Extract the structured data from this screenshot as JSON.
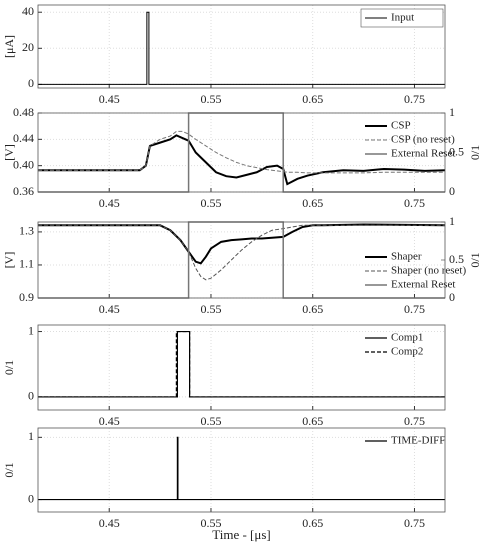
{
  "chart_data": [
    {
      "type": "line",
      "ylabel": "[μA]",
      "xlim": [
        0.38,
        0.78
      ],
      "xticks": [
        0.45,
        0.55,
        0.65,
        0.75
      ],
      "ylim": [
        -2,
        44
      ],
      "yticks": [
        0,
        20,
        40
      ],
      "grid": true,
      "legend": "top-right",
      "x": [
        0.38,
        0.487,
        0.487,
        0.489,
        0.489,
        0.78
      ],
      "series": [
        {
          "name": "Input",
          "color": "#000000",
          "width": 1,
          "values": [
            0,
            0,
            40,
            40,
            0,
            0
          ]
        }
      ]
    },
    {
      "type": "line",
      "ylabel": "[V]",
      "y2label": "0/1",
      "xlim": [
        0.38,
        0.78
      ],
      "xticks": [
        0.45,
        0.55,
        0.65,
        0.75
      ],
      "ylim": [
        0.36,
        0.48
      ],
      "yticks": [
        0.36,
        {
          "value": 0.4,
          "label": "0.40"
        },
        0.44,
        0.48
      ],
      "y2lim": [
        0,
        1
      ],
      "y2ticks": [
        0,
        0.5,
        1
      ],
      "grid": true,
      "legend": "top-right",
      "x": [
        0.38,
        0.48,
        0.486,
        0.49,
        0.5,
        0.51,
        0.516,
        0.522,
        0.528,
        0.528,
        0.535,
        0.545,
        0.555,
        0.565,
        0.575,
        0.585,
        0.595,
        0.605,
        0.615,
        0.621,
        0.621,
        0.625,
        0.635,
        0.645,
        0.66,
        0.68,
        0.7,
        0.72,
        0.74,
        0.76,
        0.78
      ],
      "series": [
        {
          "name": "CSP",
          "color": "#000000",
          "width": 2,
          "values": [
            0.393,
            0.393,
            0.4,
            0.43,
            0.435,
            0.44,
            0.446,
            0.442,
            0.438,
            0.438,
            0.42,
            0.405,
            0.39,
            0.384,
            0.382,
            0.386,
            0.39,
            0.398,
            0.4,
            0.395,
            0.395,
            0.372,
            0.38,
            0.385,
            0.39,
            0.393,
            0.392,
            0.395,
            0.394,
            0.392,
            0.393
          ]
        },
        {
          "name": "CSP (no reset)",
          "color": "#777777",
          "width": 1,
          "dashed": true,
          "values": [
            0.393,
            0.393,
            0.4,
            0.43,
            0.44,
            0.445,
            0.452,
            0.452,
            0.448,
            0.448,
            0.44,
            0.43,
            0.42,
            0.412,
            0.405,
            0.4,
            0.397,
            0.394,
            0.392,
            0.391,
            0.391,
            0.39,
            0.39,
            0.389,
            0.389,
            0.389,
            0.389,
            0.39,
            0.39,
            0.39,
            0.39
          ]
        },
        {
          "name": "External Reset",
          "color": "#777777",
          "width": 1.5,
          "axis": "y2",
          "values": [
            0,
            0,
            0,
            0,
            0,
            0,
            0,
            0,
            0,
            1,
            1,
            1,
            1,
            1,
            1,
            1,
            1,
            1,
            1,
            1,
            0,
            0,
            0,
            0,
            0,
            0,
            0,
            0,
            0,
            0,
            0
          ]
        }
      ]
    },
    {
      "type": "line",
      "ylabel": "[V]",
      "y2label": "0/1",
      "xlim": [
        0.38,
        0.78
      ],
      "xticks": [
        0.45,
        0.55,
        0.65,
        0.75
      ],
      "ylim": [
        0.9,
        1.36
      ],
      "yticks": [
        0.9,
        1.1,
        1.3
      ],
      "y2lim": [
        0,
        1
      ],
      "y2ticks": [
        0,
        0.5,
        1
      ],
      "grid": true,
      "legend": "bottom-right",
      "x": [
        0.38,
        0.5,
        0.51,
        0.52,
        0.528,
        0.528,
        0.535,
        0.54,
        0.545,
        0.55,
        0.56,
        0.57,
        0.58,
        0.59,
        0.6,
        0.61,
        0.621,
        0.621,
        0.63,
        0.64,
        0.65,
        0.66,
        0.7,
        0.78
      ],
      "series": [
        {
          "name": "Shaper",
          "color": "#000000",
          "width": 2,
          "values": [
            1.34,
            1.34,
            1.31,
            1.25,
            1.18,
            1.18,
            1.12,
            1.11,
            1.15,
            1.2,
            1.24,
            1.25,
            1.255,
            1.26,
            1.26,
            1.265,
            1.27,
            1.27,
            1.3,
            1.33,
            1.34,
            1.34,
            1.345,
            1.34
          ]
        },
        {
          "name": "Shaper (no reset)",
          "color": "#555555",
          "width": 1,
          "dashed": true,
          "values": [
            1.34,
            1.34,
            1.31,
            1.25,
            1.18,
            1.18,
            1.08,
            1.03,
            1.01,
            1.02,
            1.07,
            1.13,
            1.19,
            1.24,
            1.28,
            1.31,
            1.32,
            1.32,
            1.33,
            1.34,
            1.34,
            1.34,
            1.34,
            1.34
          ]
        },
        {
          "name": "External Reset",
          "color": "#777777",
          "width": 1.5,
          "axis": "y2",
          "values": [
            0,
            0,
            0,
            0,
            0,
            1,
            1,
            1,
            1,
            1,
            1,
            1,
            1,
            1,
            1,
            1,
            1,
            0,
            0,
            0,
            0,
            0,
            0,
            0
          ]
        }
      ]
    },
    {
      "type": "line",
      "ylabel": "0/1",
      "xlim": [
        0.38,
        0.78
      ],
      "xticks": [
        0.45,
        0.55,
        0.65,
        0.75
      ],
      "ylim": [
        -0.2,
        1.1
      ],
      "yticks": [
        0,
        1
      ],
      "grid": true,
      "legend": "top-right",
      "x": [
        0.38,
        0.516,
        0.516,
        0.517,
        0.517,
        0.529,
        0.529,
        0.78
      ],
      "series": [
        {
          "name": "Comp1",
          "color": "#000000",
          "width": 1.2,
          "values": [
            0,
            0,
            0,
            0,
            1,
            1,
            0,
            0
          ]
        },
        {
          "name": "Comp2",
          "color": "#000000",
          "width": 1.2,
          "dashed": true,
          "values": [
            0,
            0,
            1,
            1,
            1,
            1,
            0,
            0
          ]
        }
      ]
    },
    {
      "type": "line",
      "ylabel": "0/1",
      "xlabel": "Time - [μs]",
      "xlim": [
        0.38,
        0.78
      ],
      "xticks": [
        0.45,
        0.55,
        0.65,
        0.75
      ],
      "ylim": [
        -0.2,
        1.15
      ],
      "yticks": [
        0,
        1
      ],
      "grid": true,
      "legend": "top-right",
      "x": [
        0.38,
        0.517,
        0.517,
        0.5175,
        0.5175,
        0.78
      ],
      "series": [
        {
          "name": "TIME-DIFF",
          "color": "#000000",
          "width": 1.2,
          "values": [
            0,
            0,
            1,
            1,
            0,
            0
          ]
        }
      ]
    }
  ]
}
